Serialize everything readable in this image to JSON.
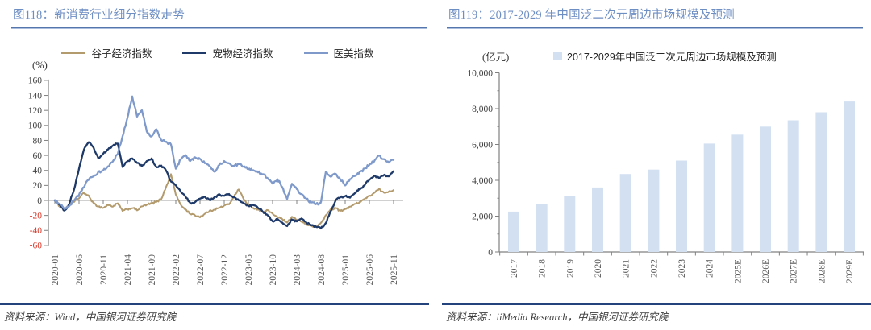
{
  "colors": {
    "title_blue": "#6d8ec3",
    "title_rule_dark": "#5575ad",
    "title_rule_light": "#aabdde",
    "footer_rule_navy": "#24427c",
    "axis_line_gray": "#808080",
    "zero_line_gray": "#a0a0a0",
    "tick_label_dark": "#404040",
    "tick_label_gray": "#595959",
    "negative_tick_red": "#d93a2b",
    "grain_line_tan": "#b49b6e",
    "pet_line_navy": "#1f3a68",
    "beauty_line_blue": "#7f9aca",
    "bar_fill_lightblue": "#d3e0f2",
    "source_text_gray": "#3d3d3d"
  },
  "fig118": {
    "title": "图118：新消费行业细分指数走势",
    "unit_label": "(%)",
    "source": "资料来源：Wind，中国银河证券研究院"
  },
  "fig119": {
    "title": "图119：2017-2029 年中国泛二次元周边市场规模及预测",
    "unit_label": "(亿元)",
    "legend_label": "2017-2029年中国泛二次元周边市场规模及预测",
    "source": "资料来源：iiMedia Research，中国银河证券研究院"
  },
  "chart_data": [
    {
      "type": "line",
      "figure": "图118",
      "title": "新消费行业细分指数走势",
      "y_unit": "%",
      "ylim": [
        -60,
        160
      ],
      "ytick_step": 20,
      "grid": false,
      "legend_position": "top",
      "x_start": "2020-01",
      "x_freq": "monthly",
      "n_points": 71,
      "x_tick_labels": [
        "2020-01",
        "2020-06",
        "2020-11",
        "2021-04",
        "2021-09",
        "2022-02",
        "2022-07",
        "2022-12",
        "2023-05",
        "2023-10",
        "2024-03",
        "2024-08",
        "2025-01",
        "2025-06",
        "2025-11"
      ],
      "series": [
        {
          "name": "谷子经济指数",
          "color": "#b49b6e",
          "values": [
            0,
            -8,
            -13,
            -6,
            -2,
            3,
            10,
            6,
            -4,
            -8,
            -10,
            -6,
            -8,
            -4,
            -14,
            -12,
            -10,
            -13,
            -8,
            -6,
            -4,
            -2,
            2,
            18,
            35,
            8,
            -6,
            -12,
            -18,
            -20,
            -22,
            -18,
            -14,
            -12,
            -10,
            -7,
            -5,
            5,
            15,
            2,
            -6,
            -10,
            -12,
            -15,
            -13,
            -18,
            -22,
            -25,
            -30,
            -22,
            -26,
            -28,
            -32,
            -34,
            -35,
            -30,
            -20,
            -12,
            -10,
            -14,
            -12,
            -8,
            -5,
            -2,
            2,
            6,
            10,
            15,
            10,
            12,
            14
          ]
        },
        {
          "name": "宠物经济指数",
          "color": "#1f3a68",
          "values": [
            0,
            -6,
            -14,
            -4,
            15,
            42,
            68,
            78,
            70,
            56,
            62,
            68,
            73,
            76,
            45,
            52,
            56,
            50,
            46,
            52,
            56,
            44,
            46,
            40,
            25,
            20,
            12,
            5,
            -4,
            -2,
            2,
            5,
            0,
            4,
            8,
            6,
            8,
            4,
            0,
            -4,
            -8,
            -6,
            -10,
            -15,
            -20,
            -28,
            -25,
            -30,
            -34,
            -25,
            -28,
            -24,
            -30,
            -33,
            -35,
            -37,
            -30,
            -15,
            0,
            4,
            6,
            4,
            10,
            15,
            20,
            28,
            33,
            30,
            34,
            32,
            39
          ]
        },
        {
          "name": "医美指数",
          "color": "#7f9aca",
          "values": [
            0,
            -5,
            -12,
            -8,
            0,
            8,
            18,
            28,
            32,
            38,
            40,
            45,
            52,
            62,
            85,
            110,
            138,
            112,
            120,
            92,
            85,
            95,
            80,
            78,
            75,
            42,
            55,
            60,
            52,
            58,
            55,
            50,
            45,
            38,
            48,
            52,
            50,
            46,
            48,
            45,
            42,
            40,
            38,
            35,
            30,
            22,
            28,
            18,
            2,
            22,
            15,
            8,
            2,
            -3,
            -5,
            -2,
            38,
            32,
            35,
            28,
            20,
            28,
            32,
            38,
            42,
            48,
            52,
            60,
            55,
            50,
            54
          ]
        }
      ]
    },
    {
      "type": "bar",
      "figure": "图119",
      "title": "2017-2029 年中国泛二次元周边市场规模及预测",
      "y_unit": "亿元",
      "ylim": [
        0,
        10000
      ],
      "ytick_step": 2000,
      "grid": false,
      "legend_position": "top",
      "legend": [
        "2017-2029年中国泛二次元周边市场规模及预测"
      ],
      "categories": [
        "2017",
        "2018",
        "2019",
        "2020",
        "2021",
        "2022",
        "2023",
        "2024",
        "2025E",
        "2026E",
        "2027E",
        "2028E",
        "2029E"
      ],
      "values": [
        2250,
        2650,
        3100,
        3600,
        4350,
        4600,
        5100,
        6050,
        6550,
        7000,
        7350,
        7800,
        8400
      ]
    }
  ]
}
